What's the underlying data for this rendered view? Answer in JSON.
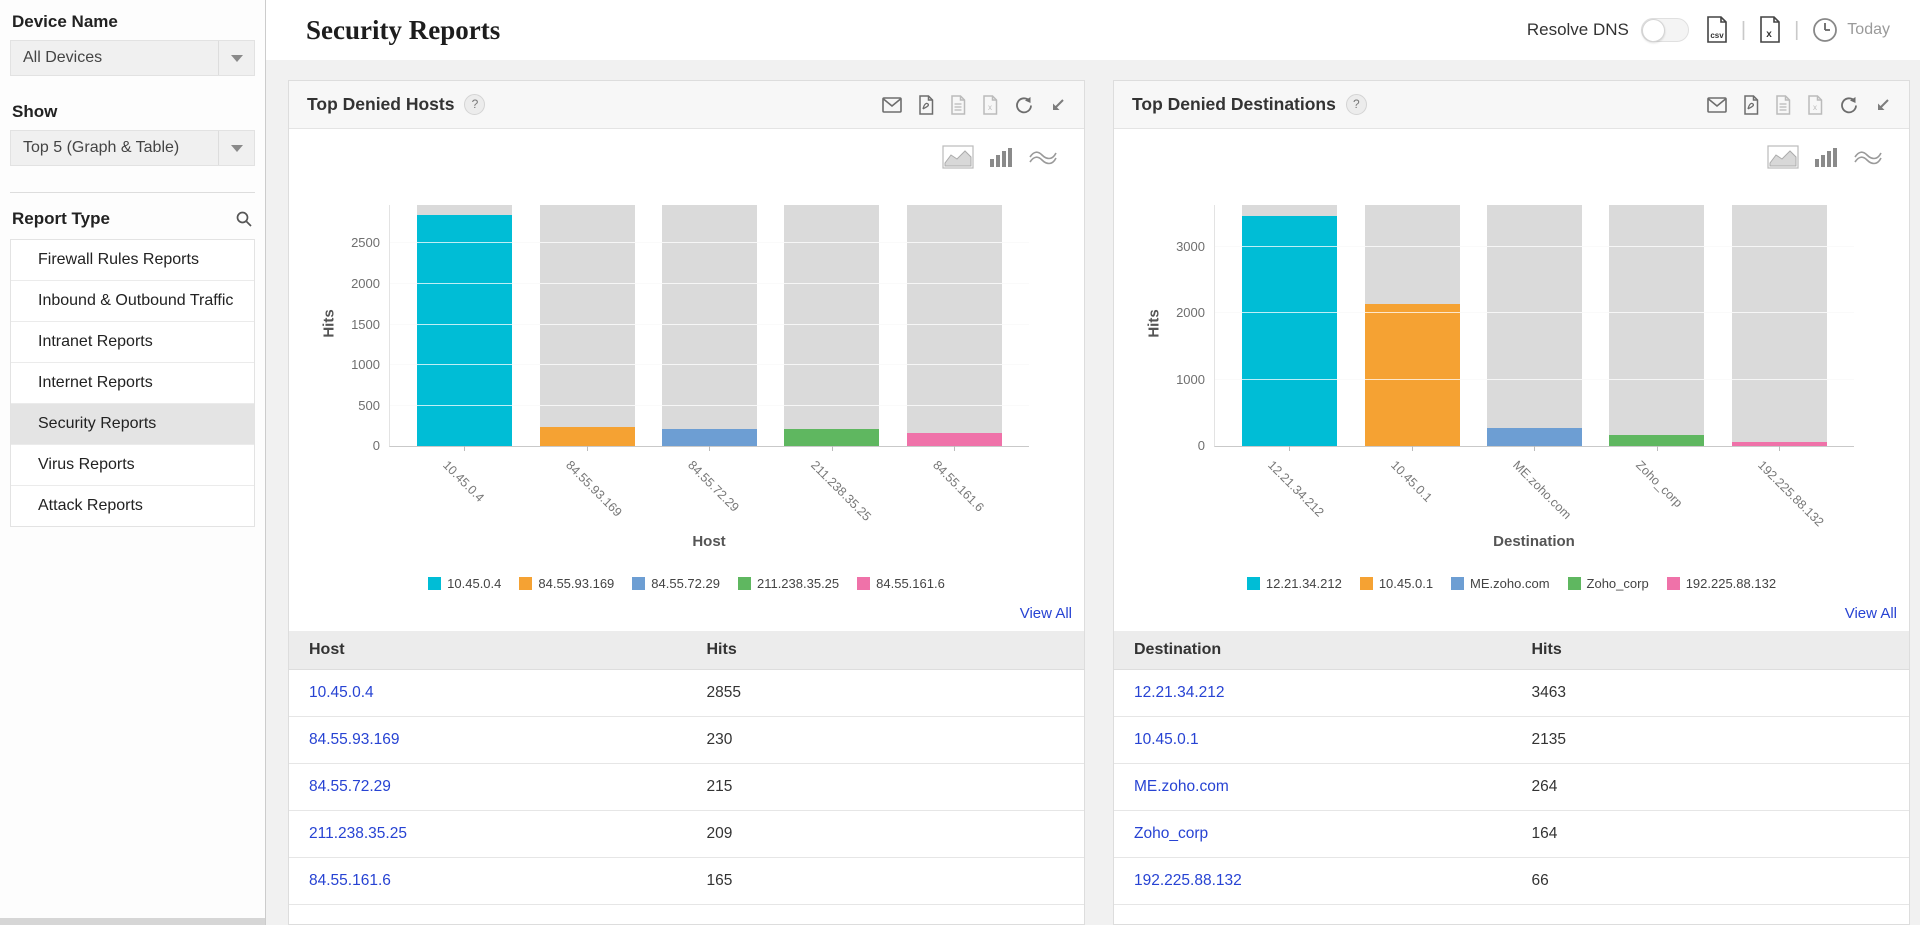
{
  "sidebar": {
    "device_name_label": "Device Name",
    "device_select_value": "All Devices",
    "show_label": "Show",
    "show_select_value": "Top 5 (Graph & Table)",
    "report_type_label": "Report Type",
    "report_types": [
      "Firewall Rules Reports",
      "Inbound & Outbound Traffic",
      "Intranet Reports",
      "Internet Reports",
      "Security Reports",
      "Virus Reports",
      "Attack Reports"
    ],
    "selected_report_type": "Security Reports",
    "search_icon": "search-icon"
  },
  "header": {
    "title": "Security Reports",
    "resolve_dns_label": "Resolve DNS",
    "toggle_state": "off",
    "export_icons": [
      "csv-export-icon",
      "excel-export-icon"
    ],
    "time_icon": "clock-icon",
    "time_range": "Today"
  },
  "panel_action_icons": [
    "email-icon",
    "pdf-export-icon",
    "document-export-icon",
    "excel-export-icon",
    "refresh-icon",
    "detach-icon"
  ],
  "chart_type_switcher_icons": [
    "area-chart-icon",
    "bar-chart-icon",
    "line-chart-icon"
  ],
  "panels": [
    {
      "title": "Top Denied Hosts",
      "help": "?",
      "view_all": "View All",
      "table": {
        "columns": [
          "Host",
          "Hits"
        ],
        "rows": [
          [
            "10.45.0.4",
            "2855"
          ],
          [
            "84.55.93.169",
            "230"
          ],
          [
            "84.55.72.29",
            "215"
          ],
          [
            "211.238.35.25",
            "209"
          ],
          [
            "84.55.161.6",
            "165"
          ]
        ]
      }
    },
    {
      "title": "Top Denied Destinations",
      "help": "?",
      "view_all": "View All",
      "table": {
        "columns": [
          "Destination",
          "Hits"
        ],
        "rows": [
          [
            "12.21.34.212",
            "3463"
          ],
          [
            "10.45.0.1",
            "2135"
          ],
          [
            "ME.zoho.com",
            "264"
          ],
          [
            "Zoho_corp",
            "164"
          ],
          [
            "192.225.88.132",
            "66"
          ]
        ]
      }
    }
  ],
  "chart_data": [
    {
      "type": "bar",
      "title": "Top Denied Hosts",
      "categories": [
        "10.45.0.4",
        "84.55.93.169",
        "84.55.72.29",
        "211.238.35.25",
        "84.55.161.6"
      ],
      "values": [
        2855,
        230,
        215,
        209,
        165
      ],
      "colors": [
        "#00bdd6",
        "#f5a233",
        "#6d9ed3",
        "#5fb760",
        "#ef72a9"
      ],
      "background_bar_color": "#dadada",
      "background_bars_full_height": true,
      "xlabel": "Host",
      "ylabel": "Hits",
      "ylim": [
        0,
        2975
      ],
      "yticks": [
        0,
        500,
        1000,
        1500,
        2000,
        2500
      ],
      "grid": true,
      "legend_position": "bottom"
    },
    {
      "type": "bar",
      "title": "Top Denied Destinations",
      "categories": [
        "12.21.34.212",
        "10.45.0.1",
        "ME.zoho.com",
        "Zoho_corp",
        "192.225.88.132"
      ],
      "values": [
        3463,
        2135,
        264,
        164,
        66
      ],
      "colors": [
        "#00bdd6",
        "#f5a233",
        "#6d9ed3",
        "#5fb760",
        "#ef72a9"
      ],
      "background_bar_color": "#dadada",
      "background_bars_full_height": true,
      "xlabel": "Destination",
      "ylabel": "Hits",
      "ylim": [
        0,
        3630
      ],
      "yticks": [
        0,
        1000,
        2000,
        3000
      ],
      "grid": true,
      "legend_position": "bottom"
    }
  ]
}
